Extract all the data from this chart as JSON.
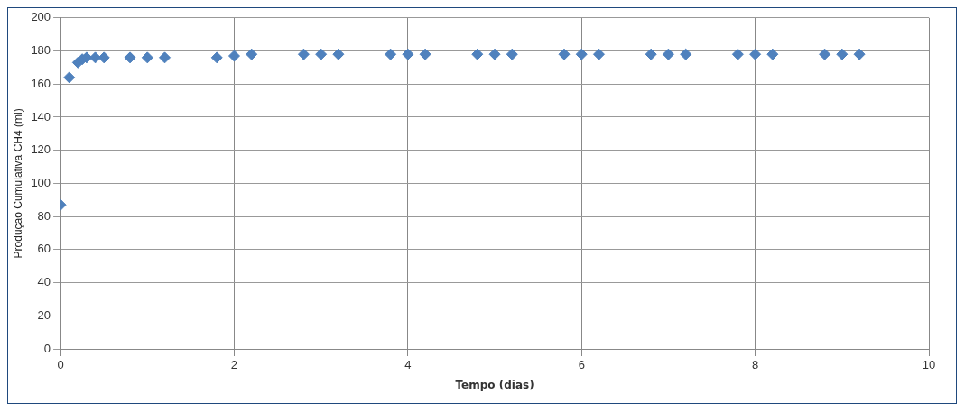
{
  "chart_data": {
    "type": "scatter",
    "xlabel": "Tempo (dias)",
    "ylabel": "Produção Cumulativa CH4 (ml)",
    "x": [
      0,
      0.1,
      0.2,
      0.25,
      0.3,
      0.4,
      0.5,
      0.8,
      1.0,
      1.2,
      1.8,
      2.0,
      2.2,
      2.8,
      3.0,
      3.2,
      3.8,
      4.0,
      4.2,
      4.8,
      5.0,
      5.2,
      5.8,
      6.0,
      6.2,
      6.8,
      7.0,
      7.2,
      7.8,
      8.0,
      8.2,
      8.8,
      9.0,
      9.2
    ],
    "series": [
      {
        "color": "#4f81bd",
        "values": [
          87,
          164,
          173,
          175,
          176,
          176,
          176,
          176,
          176,
          176,
          176,
          177,
          178,
          178,
          178,
          178,
          178,
          178,
          178,
          178,
          178,
          178,
          178,
          178,
          178,
          178,
          178,
          178,
          178,
          178,
          178,
          178,
          178,
          178
        ]
      }
    ],
    "xlim": [
      0,
      10
    ],
    "xticks": [
      0,
      2,
      4,
      6,
      8,
      10
    ],
    "ylim": [
      0,
      200
    ],
    "yticks": [
      0,
      20,
      40,
      60,
      80,
      100,
      120,
      140,
      160,
      180,
      200
    ],
    "grid": true,
    "legend": false,
    "marker": "diamond"
  }
}
